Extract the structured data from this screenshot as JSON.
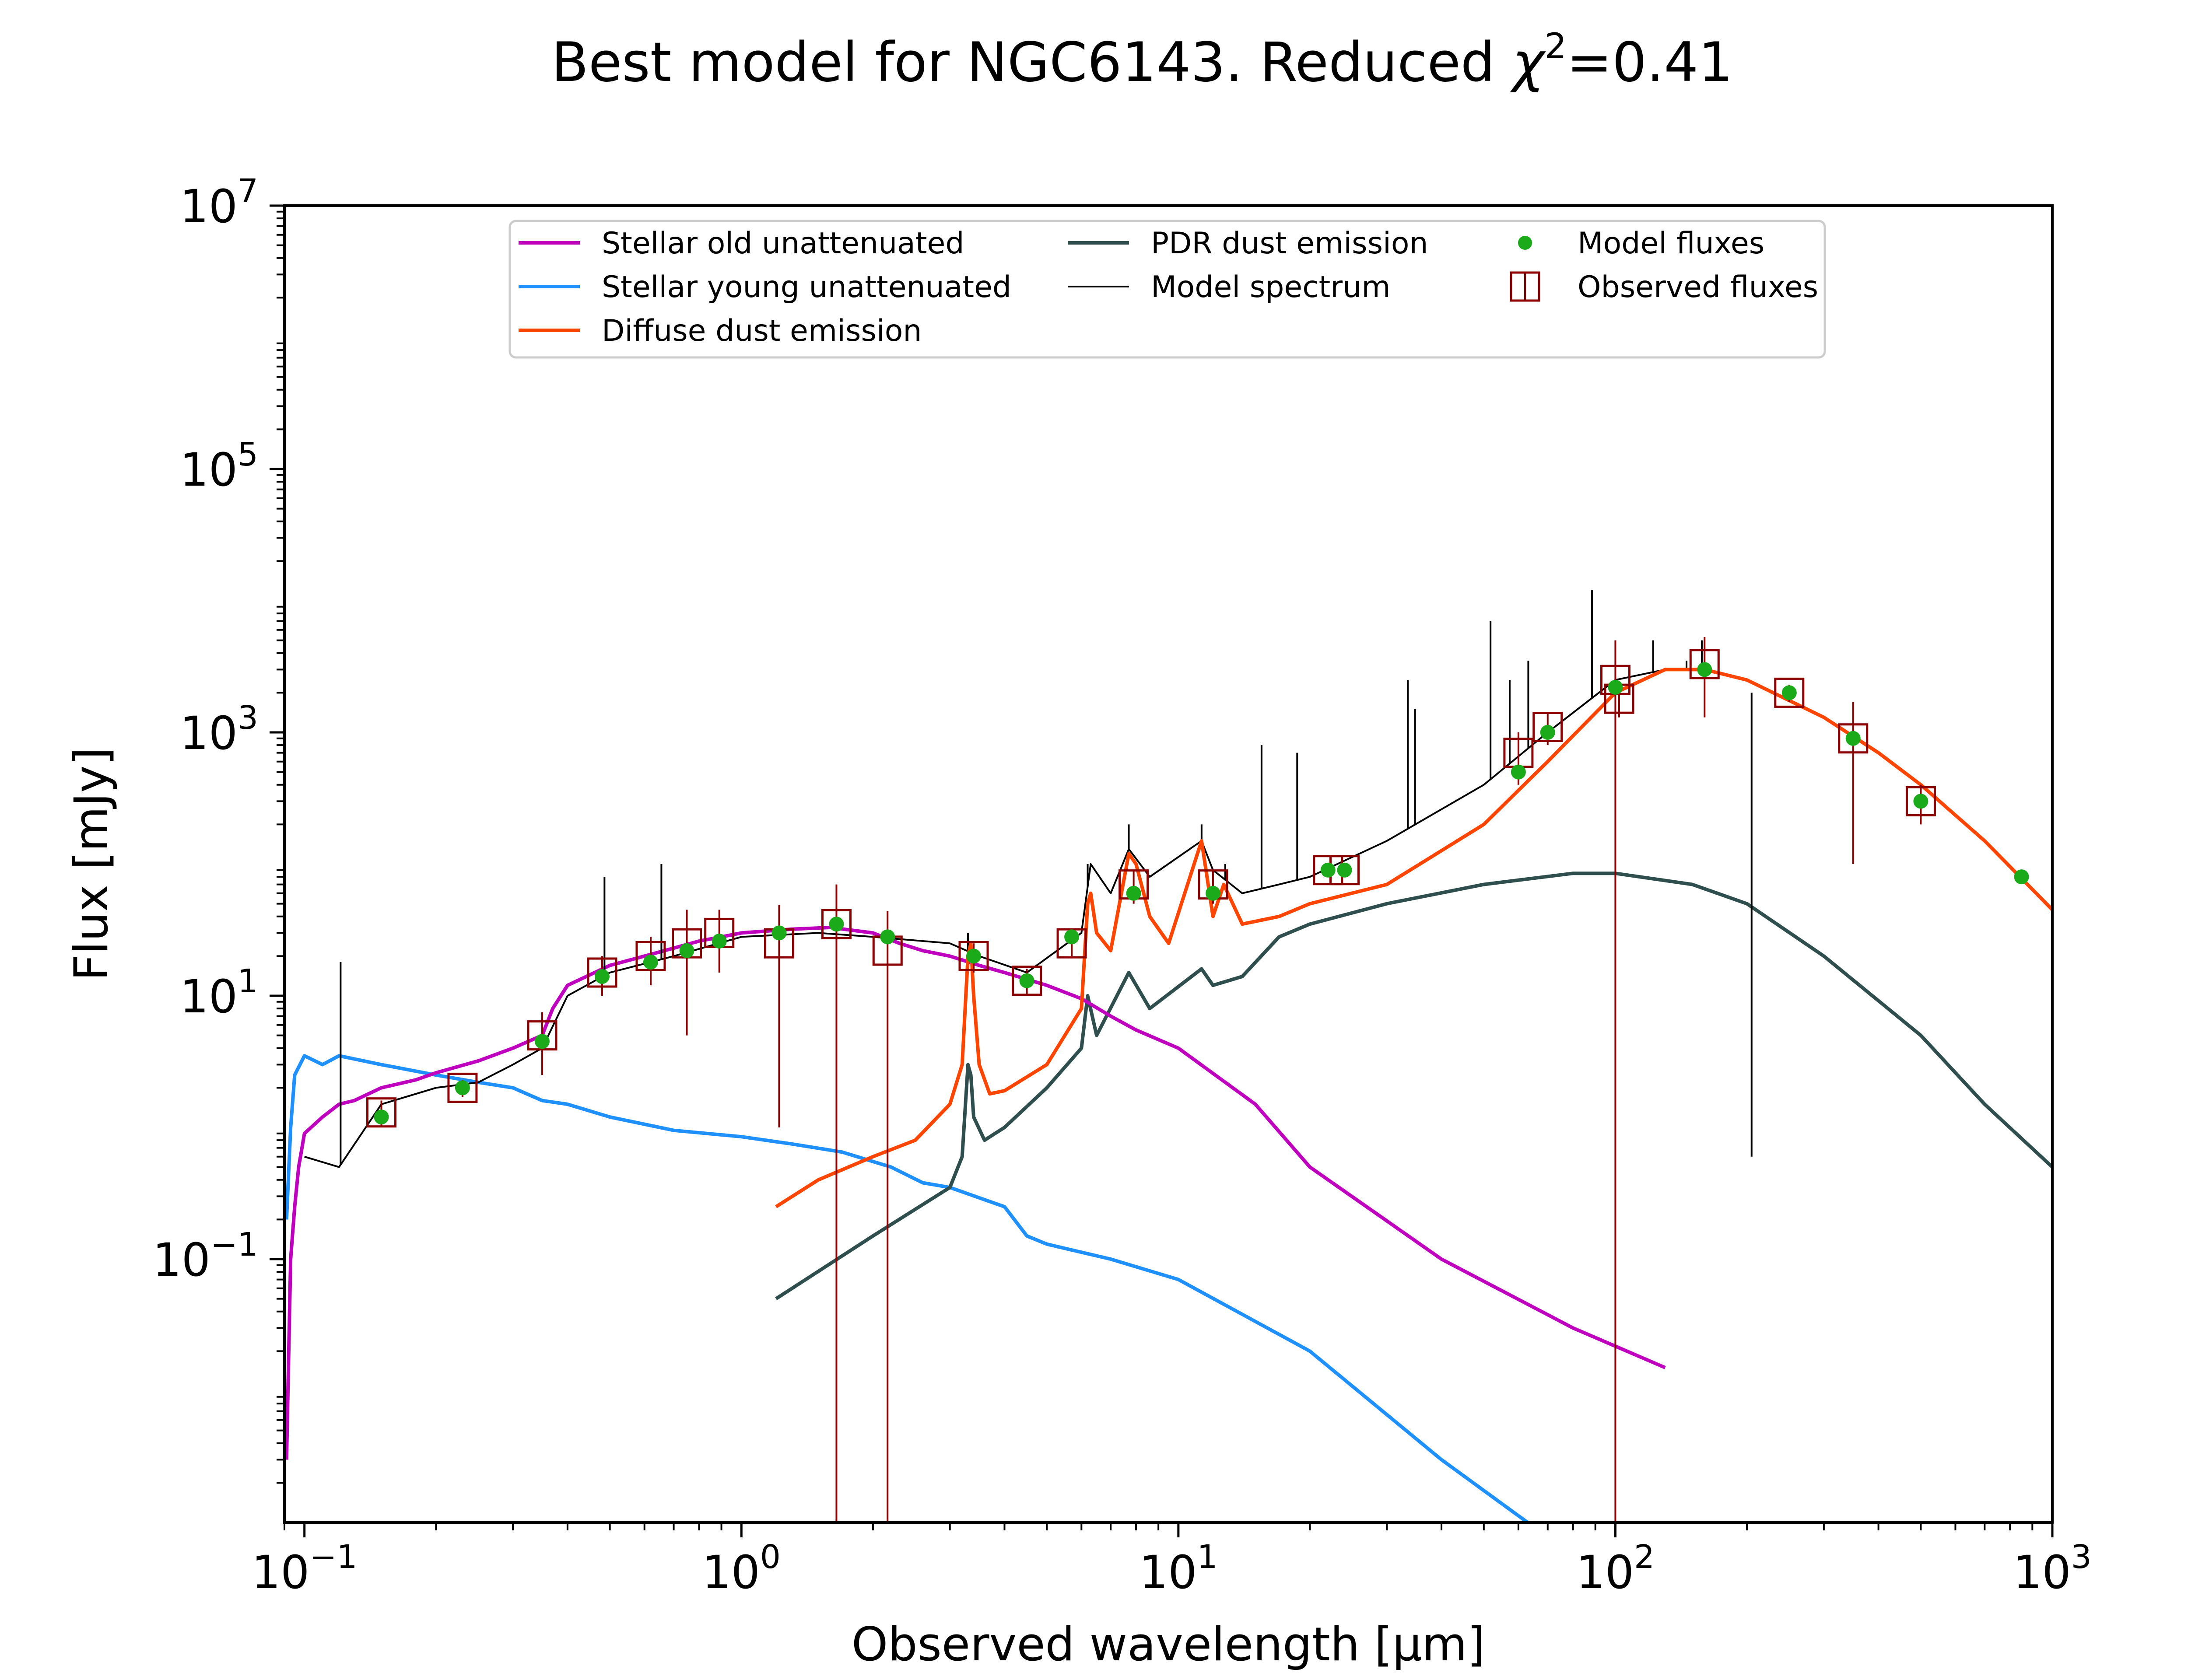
{
  "chart_data": {
    "type": "line",
    "title": "Best model for NGC6143. Reduced χ²=0.41",
    "title_parts": {
      "prefix": "Best model for NGC6143. Reduced ",
      "chi": "χ",
      "sup": "2",
      "suffix": "=0.41"
    },
    "xlabel": "Observed wavelength [μm]",
    "ylabel": "Flux [mJy]",
    "xscale": "log",
    "yscale": "log",
    "xlim": [
      0.09,
      1000
    ],
    "ylim": [
      0.001,
      10000000
    ],
    "grid": false,
    "legend_placement": "upper-center",
    "x_ticks": [
      {
        "value": 0.1,
        "base": "10",
        "exp": "−1"
      },
      {
        "value": 1,
        "base": "10",
        "exp": "0"
      },
      {
        "value": 10,
        "base": "10",
        "exp": "1"
      },
      {
        "value": 100,
        "base": "10",
        "exp": "2"
      },
      {
        "value": 1000,
        "base": "10",
        "exp": "3"
      }
    ],
    "y_ticks": [
      {
        "value": 0.1,
        "base": "10",
        "exp": "−1"
      },
      {
        "value": 10,
        "base": "10",
        "exp": "1"
      },
      {
        "value": 1000,
        "base": "10",
        "exp": "3"
      },
      {
        "value": 100000,
        "base": "10",
        "exp": "5"
      },
      {
        "value": 10000000,
        "base": "10",
        "exp": "7"
      }
    ],
    "series": [
      {
        "name": "Stellar old unattenuated",
        "kind": "line",
        "color": "#bf00bf",
        "points": [
          [
            0.091,
            0.003
          ],
          [
            0.093,
            0.1
          ],
          [
            0.095,
            0.25
          ],
          [
            0.097,
            0.5
          ],
          [
            0.1,
            0.9
          ],
          [
            0.11,
            1.2
          ],
          [
            0.12,
            1.5
          ],
          [
            0.13,
            1.6
          ],
          [
            0.15,
            2.0
          ],
          [
            0.18,
            2.3
          ],
          [
            0.2,
            2.6
          ],
          [
            0.25,
            3.2
          ],
          [
            0.3,
            4.0
          ],
          [
            0.35,
            5.0
          ],
          [
            0.37,
            8.0
          ],
          [
            0.4,
            12
          ],
          [
            0.5,
            17
          ],
          [
            0.6,
            20
          ],
          [
            0.7,
            23
          ],
          [
            0.8,
            26
          ],
          [
            0.9,
            28
          ],
          [
            1.0,
            30
          ],
          [
            1.3,
            32
          ],
          [
            1.6,
            33
          ],
          [
            2.0,
            30
          ],
          [
            2.3,
            25
          ],
          [
            2.6,
            22
          ],
          [
            3.0,
            20
          ],
          [
            3.5,
            17
          ],
          [
            4.0,
            15
          ],
          [
            5.0,
            12
          ],
          [
            6.0,
            9.5
          ],
          [
            7.0,
            7
          ],
          [
            8.0,
            5.5
          ],
          [
            10.0,
            4.0
          ],
          [
            15.0,
            1.5
          ],
          [
            20.0,
            0.5
          ],
          [
            40.0,
            0.1
          ],
          [
            80.0,
            0.03
          ],
          [
            130.0,
            0.015
          ]
        ]
      },
      {
        "name": "Stellar young unattenuated",
        "kind": "line",
        "color": "#1e90ff",
        "points": [
          [
            0.091,
            0.2
          ],
          [
            0.093,
            1.0
          ],
          [
            0.095,
            2.5
          ],
          [
            0.1,
            3.5
          ],
          [
            0.11,
            3.0
          ],
          [
            0.12,
            3.5
          ],
          [
            0.15,
            3.0
          ],
          [
            0.2,
            2.5
          ],
          [
            0.25,
            2.2
          ],
          [
            0.3,
            2.0
          ],
          [
            0.35,
            1.6
          ],
          [
            0.4,
            1.5
          ],
          [
            0.5,
            1.2
          ],
          [
            0.7,
            0.95
          ],
          [
            1.0,
            0.85
          ],
          [
            1.3,
            0.75
          ],
          [
            1.7,
            0.65
          ],
          [
            2.2,
            0.5
          ],
          [
            2.6,
            0.38
          ],
          [
            3.0,
            0.35
          ],
          [
            4.0,
            0.25
          ],
          [
            4.5,
            0.15
          ],
          [
            5.0,
            0.13
          ],
          [
            7.0,
            0.1
          ],
          [
            10.0,
            0.07
          ],
          [
            20.0,
            0.02
          ],
          [
            40.0,
            0.003
          ],
          [
            63.0,
            0.001
          ]
        ]
      },
      {
        "name": "Diffuse dust emission",
        "kind": "line",
        "color": "#ff4500",
        "points": [
          [
            1.2,
            0.25
          ],
          [
            1.5,
            0.4
          ],
          [
            2.0,
            0.6
          ],
          [
            2.5,
            0.8
          ],
          [
            3.0,
            1.5
          ],
          [
            3.2,
            3
          ],
          [
            3.3,
            20
          ],
          [
            3.35,
            25
          ],
          [
            3.4,
            10
          ],
          [
            3.5,
            3
          ],
          [
            3.7,
            1.8
          ],
          [
            4.0,
            1.9
          ],
          [
            5.0,
            3
          ],
          [
            6.0,
            8
          ],
          [
            6.2,
            50
          ],
          [
            6.3,
            60
          ],
          [
            6.5,
            30
          ],
          [
            7.0,
            22
          ],
          [
            7.7,
            120
          ],
          [
            8.0,
            100
          ],
          [
            8.6,
            40
          ],
          [
            9.5,
            25
          ],
          [
            11.3,
            150
          ],
          [
            12.0,
            40
          ],
          [
            12.7,
            70
          ],
          [
            14.0,
            35
          ],
          [
            17.0,
            40
          ],
          [
            20.0,
            50
          ],
          [
            30.0,
            70
          ],
          [
            50.0,
            200
          ],
          [
            70.0,
            600
          ],
          [
            100.0,
            2000
          ],
          [
            130.0,
            3000
          ],
          [
            160.0,
            3000
          ],
          [
            200.0,
            2500
          ],
          [
            300.0,
            1300
          ],
          [
            400.0,
            700
          ],
          [
            500.0,
            400
          ],
          [
            700.0,
            150
          ],
          [
            1000.0,
            45
          ]
        ]
      },
      {
        "name": "PDR dust emission",
        "kind": "line",
        "color": "#2f4f4f",
        "points": [
          [
            1.2,
            0.05
          ],
          [
            2.0,
            0.15
          ],
          [
            3.0,
            0.35
          ],
          [
            3.2,
            0.6
          ],
          [
            3.3,
            3
          ],
          [
            3.35,
            2.5
          ],
          [
            3.4,
            1.2
          ],
          [
            3.6,
            0.8
          ],
          [
            4.0,
            1
          ],
          [
            5.0,
            2
          ],
          [
            6.0,
            4
          ],
          [
            6.2,
            10
          ],
          [
            6.5,
            5
          ],
          [
            7.7,
            15
          ],
          [
            8.6,
            8
          ],
          [
            11.3,
            16
          ],
          [
            12.0,
            12
          ],
          [
            14.0,
            14
          ],
          [
            17.0,
            28
          ],
          [
            20.0,
            35
          ],
          [
            30.0,
            50
          ],
          [
            50.0,
            70
          ],
          [
            80.0,
            85
          ],
          [
            100.0,
            85
          ],
          [
            150.0,
            70
          ],
          [
            200.0,
            50
          ],
          [
            300.0,
            20
          ],
          [
            500.0,
            5
          ],
          [
            700.0,
            1.5
          ],
          [
            1000.0,
            0.5
          ]
        ]
      },
      {
        "name": "Model spectrum",
        "kind": "line",
        "color": "#000000",
        "points": [
          [
            0.1,
            0.6
          ],
          [
            0.12,
            0.5
          ],
          [
            0.15,
            1.5
          ],
          [
            0.2,
            2.0
          ],
          [
            0.25,
            2.2
          ],
          [
            0.3,
            3.0
          ],
          [
            0.35,
            4.0
          ],
          [
            0.4,
            10
          ],
          [
            0.5,
            15
          ],
          [
            0.7,
            20
          ],
          [
            1.0,
            28
          ],
          [
            1.5,
            30
          ],
          [
            2.0,
            28
          ],
          [
            3.0,
            25
          ],
          [
            3.5,
            20
          ],
          [
            4.5,
            15
          ],
          [
            6.0,
            30
          ],
          [
            6.3,
            100
          ],
          [
            7.0,
            60
          ],
          [
            7.7,
            130
          ],
          [
            8.6,
            80
          ],
          [
            11.3,
            150
          ],
          [
            12.0,
            90
          ],
          [
            14.0,
            60
          ],
          [
            17.0,
            70
          ],
          [
            20.0,
            80
          ],
          [
            30.0,
            150
          ],
          [
            50.0,
            400
          ],
          [
            70.0,
            1000
          ],
          [
            100.0,
            2500
          ],
          [
            130.0,
            3000
          ],
          [
            160.0,
            3000
          ]
        ],
        "spikes": [
          [
            0.121,
            18
          ],
          [
            0.486,
            80
          ],
          [
            0.656,
            100
          ],
          [
            3.3,
            30
          ],
          [
            6.2,
            100
          ],
          [
            7.7,
            200
          ],
          [
            11.3,
            200
          ],
          [
            12.8,
            100
          ],
          [
            15.5,
            800
          ],
          [
            18.7,
            700
          ],
          [
            33.5,
            2500
          ],
          [
            34.8,
            1500
          ],
          [
            51.8,
            7000
          ],
          [
            57.3,
            2500
          ],
          [
            63.2,
            3500
          ],
          [
            88.4,
            12000
          ],
          [
            122.0,
            5000
          ],
          [
            145.5,
            3500
          ],
          [
            157.7,
            5000
          ],
          [
            205.0,
            2000
          ]
        ]
      },
      {
        "name": "Model fluxes",
        "kind": "scatter",
        "color": "#1aaa1a",
        "points": [
          [
            0.15,
            1.2
          ],
          [
            0.23,
            2.0
          ],
          [
            0.35,
            4.5
          ],
          [
            0.48,
            14
          ],
          [
            0.62,
            18
          ],
          [
            0.75,
            22
          ],
          [
            0.89,
            26
          ],
          [
            1.22,
            30
          ],
          [
            1.65,
            35
          ],
          [
            2.16,
            28
          ],
          [
            3.4,
            20
          ],
          [
            4.5,
            13
          ],
          [
            5.7,
            28
          ],
          [
            7.9,
            60
          ],
          [
            12.0,
            60
          ],
          [
            22.0,
            90
          ],
          [
            24.0,
            90
          ],
          [
            60.0,
            500
          ],
          [
            70.0,
            1000
          ],
          [
            100.0,
            2200
          ],
          [
            160.0,
            3000
          ],
          [
            250.0,
            2000
          ],
          [
            350.0,
            900
          ],
          [
            500.0,
            300
          ],
          [
            850.0,
            80
          ]
        ]
      },
      {
        "name": "Observed fluxes",
        "kind": "errorbar",
        "color": "#8b0000",
        "points": [
          [
            0.15,
            1.3,
            0.3
          ],
          [
            0.23,
            2.0,
            0.3
          ],
          [
            0.35,
            5.0,
            2.5
          ],
          [
            0.48,
            15,
            5
          ],
          [
            0.62,
            20,
            8
          ],
          [
            0.75,
            25,
            20
          ],
          [
            0.89,
            30,
            15
          ],
          [
            1.22,
            25,
            24
          ],
          [
            1.65,
            35,
            35
          ],
          [
            2.16,
            22,
            22
          ],
          [
            3.4,
            20,
            5
          ],
          [
            4.5,
            13,
            3
          ],
          [
            5.7,
            25,
            5
          ],
          [
            7.9,
            70,
            20
          ],
          [
            12.0,
            70,
            20
          ],
          [
            22.0,
            90,
            10
          ],
          [
            24.0,
            90,
            10
          ],
          [
            60.0,
            700,
            300
          ],
          [
            70.0,
            1100,
            300
          ],
          [
            100.0,
            2500,
            2500
          ],
          [
            102.0,
            1800,
            500
          ],
          [
            160.0,
            3300,
            2000
          ],
          [
            250.0,
            2000,
            300
          ],
          [
            350.0,
            900,
            800
          ],
          [
            500.0,
            300,
            100
          ]
        ]
      }
    ]
  }
}
